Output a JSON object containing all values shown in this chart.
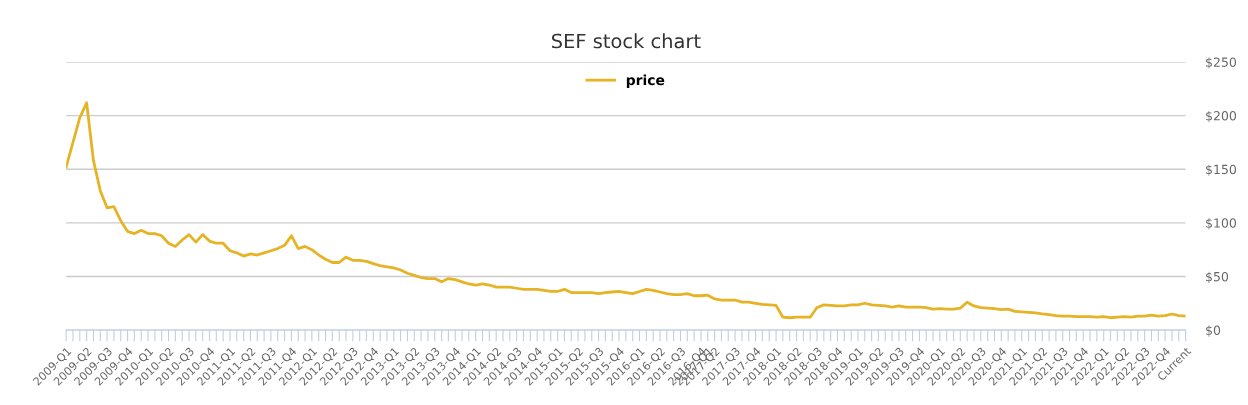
{
  "chart_data": {
    "type": "line",
    "title": "SEF stock chart",
    "categories": [
      "2009-Q1",
      null,
      null,
      "2009-Q2",
      null,
      null,
      "2009-Q3",
      null,
      null,
      "2009-Q4",
      null,
      null,
      "2010-Q1",
      null,
      null,
      "2010-Q2",
      null,
      null,
      "2010-Q3",
      null,
      null,
      "2010-Q4",
      null,
      null,
      "2011-Q1",
      null,
      null,
      "2011-Q2",
      null,
      null,
      "2011-Q3",
      null,
      null,
      "2011-Q4",
      null,
      null,
      "2012-Q1",
      null,
      null,
      "2012-Q2",
      null,
      null,
      "2012-Q3",
      null,
      null,
      "2012-Q4",
      null,
      null,
      "2013-Q1",
      null,
      null,
      "2013-Q2",
      null,
      null,
      "2013-Q3",
      null,
      null,
      "2013-Q4",
      null,
      null,
      "2014-Q1",
      null,
      null,
      "2014-Q2",
      null,
      null,
      "2014-Q3",
      null,
      null,
      "2014-Q4",
      null,
      null,
      "2015-Q1",
      null,
      null,
      "2015-Q2",
      null,
      null,
      "2015-Q3",
      null,
      null,
      "2015-Q4",
      null,
      null,
      "2016-Q1",
      null,
      null,
      "2016-Q2",
      null,
      null,
      "2016-Q3",
      null,
      null,
      "2016-Q4",
      "2017-Q1",
      "2017-Q2",
      null,
      null,
      "2017-Q3",
      null,
      null,
      "2017-Q4",
      null,
      null,
      "2018-Q1",
      null,
      null,
      "2018-Q2",
      null,
      null,
      "2018-Q3",
      null,
      null,
      "2018-Q4",
      null,
      null,
      "2019-Q1",
      null,
      null,
      "2019-Q2",
      null,
      null,
      "2019-Q3",
      null,
      null,
      "2019-Q4",
      null,
      null,
      "2020-Q1",
      null,
      null,
      "2020-Q2",
      null,
      null,
      "2020-Q3",
      null,
      null,
      "2020-Q4",
      null,
      null,
      "2021-Q1",
      null,
      null,
      "2021-Q2",
      null,
      null,
      "2021-Q3",
      null,
      null,
      "2021-Q4",
      null,
      null,
      "2022-Q1",
      null,
      null,
      "2022-Q2",
      null,
      null,
      "2022-Q3",
      null,
      null,
      "2022-Q4",
      null,
      null,
      "Current"
    ],
    "series": [
      {
        "name": "price",
        "color": "#e6b325",
        "values": [
          152,
          175,
          198,
          212,
          158,
          130,
          114,
          115,
          102,
          92,
          90,
          93,
          90,
          90,
          88,
          81,
          78,
          84,
          89,
          82,
          89,
          83,
          81,
          81,
          74,
          72,
          69,
          71,
          70,
          72,
          74,
          76,
          79,
          88,
          76,
          78,
          75,
          70,
          66,
          63,
          63,
          68,
          65,
          65,
          64,
          62,
          60,
          59,
          58,
          56,
          53,
          51,
          49,
          48,
          48,
          45,
          48,
          47,
          45,
          43,
          42,
          43,
          42,
          40,
          40,
          40,
          39,
          38,
          38,
          38,
          37,
          36,
          36,
          38,
          35,
          35,
          35,
          35,
          34,
          35,
          35.5,
          36,
          35,
          34,
          36,
          38,
          37,
          35.5,
          34,
          33,
          33,
          34,
          32,
          32,
          32.5,
          29,
          28,
          28,
          28,
          26,
          26,
          25,
          24,
          23.5,
          23,
          12,
          11.5,
          12,
          12,
          12,
          21,
          23.5,
          23,
          22.5,
          22.5,
          23.5,
          23.5,
          25,
          23.5,
          23,
          22.5,
          21.5,
          22.5,
          21.5,
          21.5,
          21.5,
          21,
          19.5,
          20,
          19.5,
          19.5,
          20.5,
          26,
          22.5,
          21,
          20.5,
          20,
          19,
          19.5,
          17.5,
          17,
          16.5,
          16,
          15,
          14.5,
          13.5,
          13,
          13,
          12.5,
          12.5,
          12.5,
          12,
          12.5,
          11.5,
          12,
          12.5,
          12,
          13,
          13,
          14,
          13,
          13.5,
          15,
          13.5,
          13
        ]
      }
    ],
    "ylim": [
      0,
      250
    ],
    "yticks": [
      {
        "value": 0,
        "label": "$0"
      },
      {
        "value": 50,
        "label": "$50"
      },
      {
        "value": 100,
        "label": "$100"
      },
      {
        "value": 150,
        "label": "$150"
      },
      {
        "value": 200,
        "label": "$200"
      },
      {
        "value": 250,
        "label": "$250"
      }
    ],
    "grid": "y",
    "legend": "top",
    "line_style": "solid"
  }
}
